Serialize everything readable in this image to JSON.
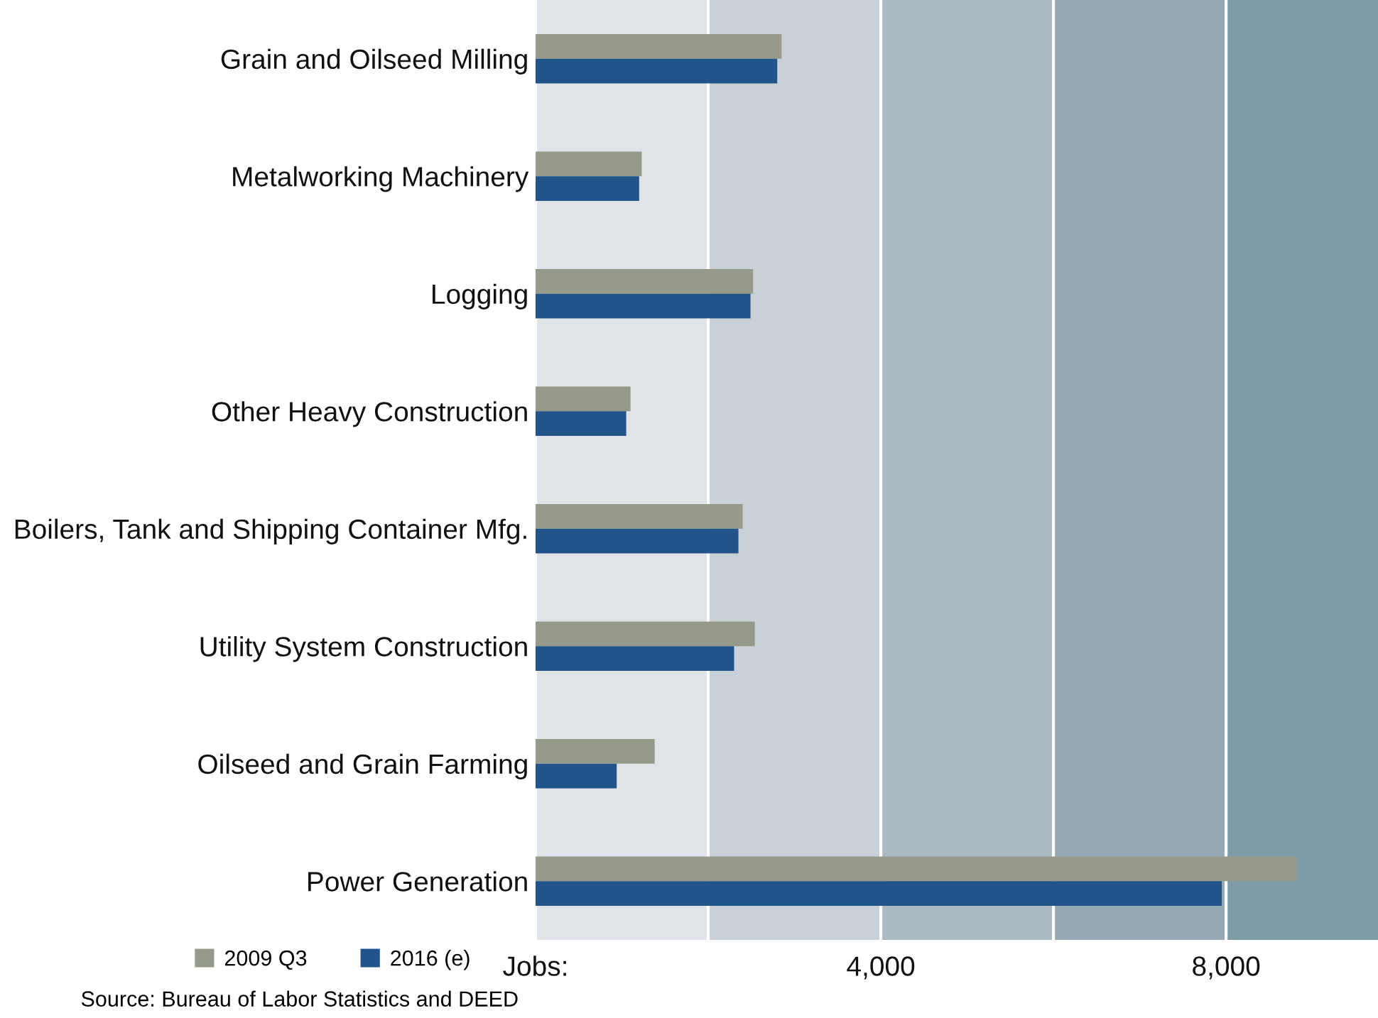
{
  "chart_data": {
    "type": "bar",
    "orientation": "horizontal",
    "categories": [
      "Grain and Oilseed Milling",
      "Metalworking Machinery",
      "Logging",
      "Other Heavy Construction",
      "Boilers, Tank and Shipping Container Mfg.",
      "Utility System Construction",
      "Oilseed and Grain Farming",
      "Power Generation"
    ],
    "series": [
      {
        "name": "2009 Q3",
        "color": "#959a8b",
        "values": [
          2850,
          1230,
          2520,
          1100,
          2400,
          2540,
          1380,
          8820
        ]
      },
      {
        "name": "2016 (e)",
        "color": "#22548a",
        "values": [
          2800,
          1200,
          2490,
          1050,
          2350,
          2300,
          940,
          7950
        ]
      }
    ],
    "xlim": [
      0,
      9760
    ],
    "xticks": [
      {
        "value": 0,
        "label": "Jobs:"
      },
      {
        "value": 2000,
        "label": null
      },
      {
        "value": 4000,
        "label": "4,000"
      },
      {
        "value": 6000,
        "label": null
      },
      {
        "value": 8000,
        "label": "8,000"
      }
    ],
    "grid": "x",
    "legend": "bottom left",
    "bands": [
      {
        "axis": "x",
        "from": 0,
        "to": 2000,
        "color": "#e0e3e8"
      },
      {
        "axis": "x",
        "from": 2000,
        "to": 4000,
        "color": "#c9d1d8"
      },
      {
        "axis": "x",
        "from": 4000,
        "to": 6000,
        "color": "#aabac2"
      },
      {
        "axis": "x",
        "from": 6000,
        "to": 8000,
        "color": "#95aab4"
      },
      {
        "axis": "x",
        "from": 8000,
        "to": 9760,
        "color": "#7e9ca8"
      }
    ],
    "annotations": [
      "Source: Bureau of Labor Statistics and DEED"
    ]
  }
}
